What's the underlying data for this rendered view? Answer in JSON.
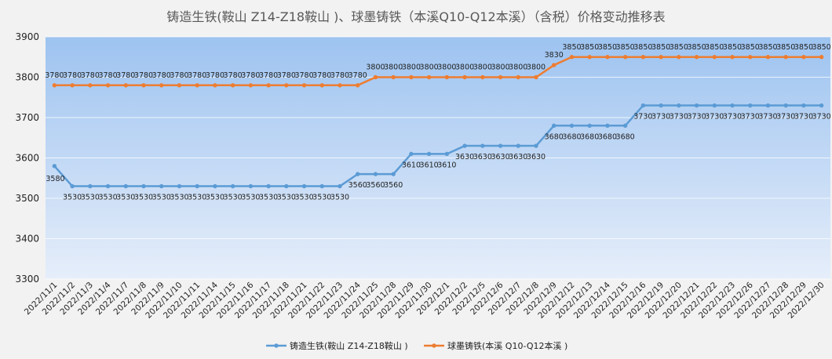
{
  "chart_data": {
    "type": "line",
    "title": "铸造生铁(鞍山 Z14-Z18鞍山 )、球墨铸铁（本溪Q10-Q12本溪）（含税）价格变动推移表",
    "xlabel": "",
    "ylabel": "",
    "ylim": [
      3300,
      3900
    ],
    "yticks": [
      "3300",
      "3400",
      "3500",
      "3600",
      "3700",
      "3800",
      "3900"
    ],
    "grid": true,
    "legend_position": "bottom",
    "categories": [
      "2022/11/1",
      "2022/11/2",
      "2022/11/3",
      "2022/11/4",
      "2022/11/7",
      "2022/11/8",
      "2022/11/9",
      "2022/11/10",
      "2022/11/11",
      "2022/11/14",
      "2022/11/15",
      "2022/11/16",
      "2022/11/17",
      "2022/11/18",
      "2022/11/21",
      "2022/11/22",
      "2022/11/23",
      "2022/11/24",
      "2022/11/25",
      "2022/11/28",
      "2022/11/29",
      "2022/11/30",
      "2022/12/1",
      "2022/12/2",
      "2022/12/5",
      "2022/12/6",
      "2022/12/7",
      "2022/12/8",
      "2022/12/9",
      "2022/12/12",
      "2022/12/13",
      "2022/12/14",
      "2022/12/15",
      "2022/12/16",
      "2022/12/19",
      "2022/12/20",
      "2022/12/21",
      "2022/12/22",
      "2022/12/23",
      "2022/12/26",
      "2022/12/27",
      "2022/12/28",
      "2022/12/29",
      "2022/12/30"
    ],
    "series": [
      {
        "name": "铸造生铁(鞍山 Z14-Z18鞍山 )",
        "color": "#5b9bd5",
        "values": [
          3580,
          3530,
          3530,
          3530,
          3530,
          3530,
          3530,
          3530,
          3530,
          3530,
          3530,
          3530,
          3530,
          3530,
          3530,
          3530,
          3530,
          3560,
          3560,
          3560,
          3610,
          3610,
          3610,
          3630,
          3630,
          3630,
          3630,
          3630,
          3680,
          3680,
          3680,
          3680,
          3680,
          3730,
          3730,
          3730,
          3730,
          3730,
          3730,
          3730,
          3730,
          3730,
          3730,
          3730
        ]
      },
      {
        "name": "球墨铸铁(本溪 Q10-Q12本溪 )",
        "color": "#ed7d31",
        "values": [
          3780,
          3780,
          3780,
          3780,
          3780,
          3780,
          3780,
          3780,
          3780,
          3780,
          3780,
          3780,
          3780,
          3780,
          3780,
          3780,
          3780,
          3780,
          3800,
          3800,
          3800,
          3800,
          3800,
          3800,
          3800,
          3800,
          3800,
          3800,
          3830,
          3850,
          3850,
          3850,
          3850,
          3850,
          3850,
          3850,
          3850,
          3850,
          3850,
          3850,
          3850,
          3850,
          3850,
          3850
        ]
      }
    ]
  }
}
